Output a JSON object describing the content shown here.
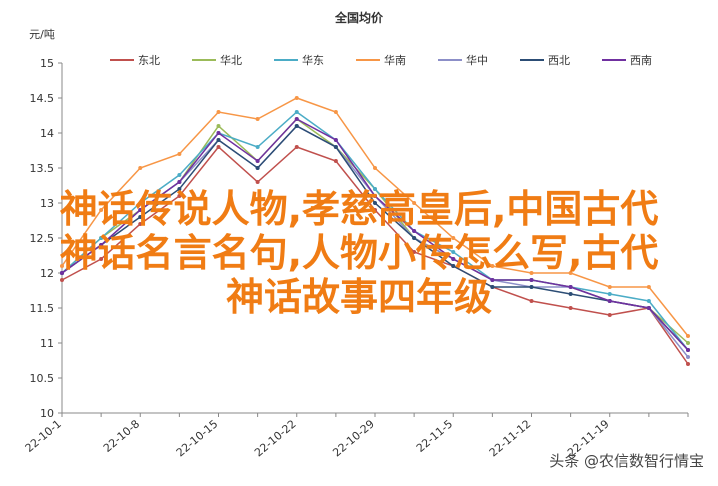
{
  "chart_data": {
    "type": "line",
    "title": "全国均价",
    "y_label": "元/吨",
    "categories": [
      "22-10-1",
      null,
      "22-10-8",
      null,
      "22-10-15",
      null,
      "22-10-22",
      null,
      "22-10-29",
      null,
      "22-11-5",
      null,
      "22-11-12",
      null,
      "22-11-19",
      null,
      null
    ],
    "series": [
      {
        "name": "东北",
        "color": "#c0504d",
        "values": [
          11.9,
          12.2,
          12.7,
          13.1,
          13.8,
          13.3,
          13.8,
          13.6,
          12.9,
          12.3,
          12.1,
          11.8,
          11.6,
          11.5,
          11.4,
          11.5,
          10.7
        ]
      },
      {
        "name": "华北",
        "color": "#9bbb59",
        "values": [
          12.0,
          12.5,
          12.9,
          13.3,
          14.1,
          13.6,
          14.2,
          13.8,
          13.2,
          12.5,
          12.2,
          11.9,
          11.9,
          11.8,
          11.6,
          11.5,
          11.0
        ]
      },
      {
        "name": "华东",
        "color": "#4bacc6",
        "values": [
          12.0,
          12.5,
          13.0,
          13.4,
          14.0,
          13.8,
          14.3,
          13.9,
          13.2,
          12.6,
          12.3,
          11.9,
          11.9,
          11.8,
          11.7,
          11.6,
          10.9
        ]
      },
      {
        "name": "华南",
        "color": "#f79646",
        "values": [
          12.1,
          12.9,
          13.5,
          13.7,
          14.3,
          14.2,
          14.5,
          14.3,
          13.5,
          13.0,
          12.5,
          12.1,
          12.0,
          12.0,
          11.8,
          11.8,
          11.1
        ]
      },
      {
        "name": "华中",
        "color": "#8c8fc8",
        "values": [
          12.0,
          12.4,
          12.9,
          13.3,
          13.9,
          13.5,
          14.1,
          13.8,
          13.1,
          12.5,
          12.2,
          11.9,
          11.8,
          11.8,
          11.6,
          11.5,
          10.8
        ]
      },
      {
        "name": "西北",
        "color": "#2c4d75",
        "values": [
          12.0,
          12.4,
          12.8,
          13.2,
          13.9,
          13.5,
          14.1,
          13.8,
          13.0,
          12.5,
          12.1,
          11.8,
          11.8,
          11.7,
          11.6,
          11.5,
          10.9
        ]
      },
      {
        "name": "西南",
        "color": "#7030a0",
        "values": [
          12.0,
          12.4,
          12.9,
          13.3,
          14.0,
          13.6,
          14.2,
          13.9,
          13.1,
          12.6,
          12.2,
          11.9,
          11.9,
          11.8,
          11.6,
          11.5,
          10.9
        ]
      }
    ],
    "ylim": [
      10,
      15
    ],
    "yticks": [
      10,
      10.5,
      11,
      11.5,
      12,
      12.5,
      13,
      13.5,
      14,
      14.5,
      15
    ],
    "overlay_text": [
      "神话传说人物,孝慈高皇后,中国古代",
      "神话名言名句,人物小传怎么写,古代",
      "神话故事四年级"
    ],
    "watermark": "头条 @农信数智行情宝"
  }
}
